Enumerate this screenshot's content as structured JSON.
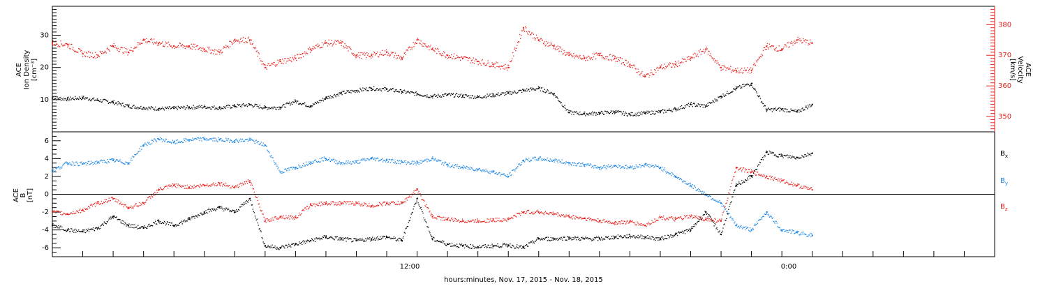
{
  "chart_data": [
    {
      "type": "scatter",
      "panel": "plasma",
      "ylabel_left": [
        "ACE",
        "Ion Density",
        "[cm⁻³]"
      ],
      "ylabel_right": [
        "ACE",
        "Velocity",
        "[km/s]"
      ],
      "ylim_left": [
        0,
        39
      ],
      "ylim_right": [
        345,
        386
      ],
      "yticks_left": [
        "10",
        "20",
        "30"
      ],
      "yticks_right": [
        "350",
        "360",
        "370",
        "380"
      ],
      "colors": {
        "density": "#000000",
        "velocity": "#e8231f"
      },
      "series": [
        {
          "key": "density",
          "axis": "left",
          "color": "#000000",
          "x": [
            0.0,
            0.5,
            1.0,
            1.5,
            2.0,
            2.5,
            3.0,
            3.5,
            4.0,
            4.5,
            5.0,
            5.5,
            6.0,
            6.5,
            7.0,
            7.5,
            8.0,
            8.5,
            9.0,
            9.5,
            10.0,
            10.5,
            11.0,
            11.5,
            12.0,
            12.5,
            13.0,
            13.5,
            14.0,
            14.5,
            15.0,
            15.5,
            16.0,
            16.5,
            17.0,
            17.5,
            18.0,
            18.5,
            19.0,
            19.5,
            20.0,
            20.5,
            21.0,
            21.5,
            22.0,
            22.5,
            23.0,
            23.5,
            24.0,
            24.5,
            25.0
          ],
          "y": [
            10.5,
            10.2,
            10.6,
            9.8,
            9.2,
            8.0,
            7.5,
            7.2,
            7.3,
            7.6,
            7.8,
            7.4,
            8.0,
            8.4,
            7.5,
            7.6,
            9.5,
            8.0,
            10.5,
            12.0,
            12.8,
            13.5,
            13.2,
            12.5,
            11.8,
            11.0,
            11.5,
            11.2,
            10.8,
            11.4,
            12.0,
            12.8,
            13.5,
            11.8,
            6.0,
            5.6,
            5.8,
            6.2,
            5.4,
            5.8,
            6.2,
            7.0,
            8.5,
            8.0,
            11.0,
            13.5,
            15.0,
            6.8,
            7.0,
            6.2,
            8.5
          ]
        },
        {
          "key": "velocity",
          "axis": "right",
          "color": "#e8231f",
          "x": [
            0.0,
            0.5,
            1.0,
            1.5,
            2.0,
            2.5,
            3.0,
            3.5,
            4.0,
            4.5,
            5.0,
            5.5,
            6.0,
            6.5,
            7.0,
            7.5,
            8.0,
            8.5,
            9.0,
            9.5,
            10.0,
            10.5,
            11.0,
            11.5,
            12.0,
            12.5,
            13.0,
            13.5,
            14.0,
            14.5,
            15.0,
            15.5,
            16.0,
            16.5,
            17.0,
            17.5,
            18.0,
            18.5,
            19.0,
            19.5,
            20.0,
            20.5,
            21.0,
            21.5,
            22.0,
            22.5,
            23.0,
            23.5,
            24.0,
            24.5,
            25.0
          ],
          "y": [
            374.0,
            373.5,
            370.5,
            370.0,
            373.0,
            371.0,
            375.0,
            374.0,
            373.0,
            373.0,
            372.0,
            371.0,
            375.0,
            375.0,
            366.0,
            368.0,
            369.0,
            372.0,
            374.0,
            374.0,
            370.0,
            370.0,
            371.0,
            369.0,
            375.0,
            372.0,
            370.0,
            369.0,
            368.0,
            367.0,
            366.0,
            379.0,
            375.0,
            373.0,
            370.0,
            369.0,
            370.0,
            369.0,
            367.0,
            363.0,
            366.0,
            367.0,
            369.0,
            372.0,
            366.0,
            365.0,
            365.0,
            373.0,
            372.0,
            375.0,
            374.0
          ]
        }
      ]
    },
    {
      "type": "scatter",
      "panel": "magnetic",
      "ylabel": [
        "ACE",
        "B",
        "[nT]"
      ],
      "ylim": [
        -7,
        7
      ],
      "yticks": [
        "-6",
        "-4",
        "-2",
        "0",
        "2",
        "4",
        "6"
      ],
      "xlabel": "hours:minutes, Nov. 17, 2015 - Nov. 18, 2015",
      "xticklabels": [
        {
          "x": 11.5,
          "label": "12:00"
        },
        {
          "x": 23.5,
          "label": "0:00"
        }
      ],
      "xlim": [
        0,
        31
      ],
      "legend": [
        "Bx",
        "By",
        "Bz"
      ],
      "colors": {
        "Bx": "#000000",
        "By": "#1e88e5",
        "Bz": "#e8231f"
      },
      "series": [
        {
          "name": "Bx",
          "color": "#000000",
          "x": [
            0.0,
            0.5,
            1.0,
            1.5,
            2.0,
            2.5,
            3.0,
            3.5,
            4.0,
            4.5,
            5.0,
            5.5,
            6.0,
            6.5,
            7.0,
            7.5,
            8.0,
            8.5,
            9.0,
            9.5,
            10.0,
            10.5,
            11.0,
            11.5,
            12.0,
            12.5,
            13.0,
            13.5,
            14.0,
            14.5,
            15.0,
            15.5,
            16.0,
            16.5,
            17.0,
            17.5,
            18.0,
            18.5,
            19.0,
            19.5,
            20.0,
            20.5,
            21.0,
            21.5,
            22.0,
            22.5,
            23.0,
            23.5,
            24.0,
            24.5,
            25.0
          ],
          "y": [
            -3.5,
            -4.0,
            -4.2,
            -3.8,
            -2.5,
            -3.5,
            -3.8,
            -3.0,
            -3.5,
            -2.8,
            -2.0,
            -1.5,
            -2.0,
            -0.5,
            -5.8,
            -6.0,
            -5.6,
            -5.2,
            -4.8,
            -5.0,
            -5.2,
            -5.0,
            -4.8,
            -5.2,
            -0.5,
            -5.0,
            -5.6,
            -5.8,
            -5.9,
            -5.8,
            -5.7,
            -6.0,
            -5.0,
            -5.0,
            -4.9,
            -5.0,
            -5.0,
            -4.8,
            -4.7,
            -4.8,
            -5.0,
            -4.5,
            -4.0,
            -2.0,
            -4.5,
            1.0,
            2.0,
            4.7,
            4.3,
            4.1,
            4.6
          ]
        },
        {
          "name": "By",
          "color": "#1e88e5",
          "x": [
            0.0,
            0.5,
            1.0,
            1.5,
            2.0,
            2.5,
            3.0,
            3.5,
            4.0,
            4.5,
            5.0,
            5.5,
            6.0,
            6.5,
            7.0,
            7.5,
            8.0,
            8.5,
            9.0,
            9.5,
            10.0,
            10.5,
            11.0,
            11.5,
            12.0,
            12.5,
            13.0,
            13.5,
            14.0,
            14.5,
            15.0,
            15.5,
            16.0,
            16.5,
            17.0,
            17.5,
            18.0,
            18.5,
            19.0,
            19.5,
            20.0,
            20.5,
            21.0,
            21.5,
            22.0,
            22.5,
            23.0,
            23.5,
            24.0,
            24.5,
            25.0
          ],
          "y": [
            2.6,
            3.5,
            3.4,
            3.6,
            3.8,
            3.5,
            5.5,
            6.2,
            5.8,
            6.1,
            6.2,
            6.1,
            6.0,
            6.1,
            5.5,
            2.5,
            3.0,
            3.6,
            4.0,
            3.5,
            3.6,
            4.0,
            3.8,
            3.6,
            3.5,
            4.0,
            3.3,
            3.0,
            2.8,
            2.5,
            2.0,
            3.8,
            4.0,
            3.8,
            3.5,
            3.3,
            3.0,
            3.2,
            3.0,
            3.3,
            3.0,
            2.0,
            1.0,
            0.0,
            -1.0,
            -3.5,
            -4.0,
            -2.0,
            -4.0,
            -4.3,
            -4.6
          ]
        },
        {
          "name": "Bz",
          "color": "#e8231f",
          "x": [
            0.0,
            0.5,
            1.0,
            1.5,
            2.0,
            2.5,
            3.0,
            3.5,
            4.0,
            4.5,
            5.0,
            5.5,
            6.0,
            6.5,
            7.0,
            7.5,
            8.0,
            8.5,
            9.0,
            9.5,
            10.0,
            10.5,
            11.0,
            11.5,
            12.0,
            12.5,
            13.0,
            13.5,
            14.0,
            14.5,
            15.0,
            15.5,
            16.0,
            16.5,
            17.0,
            17.5,
            18.0,
            18.5,
            19.0,
            19.5,
            20.0,
            20.5,
            21.0,
            21.5,
            22.0,
            22.5,
            23.0,
            23.5,
            24.0,
            24.5,
            25.0
          ],
          "y": [
            -2.0,
            -2.2,
            -1.8,
            -1.0,
            -0.5,
            -1.5,
            -1.0,
            0.5,
            1.0,
            0.8,
            1.0,
            1.2,
            0.8,
            1.5,
            -3.0,
            -2.5,
            -2.6,
            -1.2,
            -1.0,
            -1.0,
            -1.0,
            -1.3,
            -1.0,
            -1.0,
            0.5,
            -2.5,
            -2.8,
            -3.0,
            -3.0,
            -2.9,
            -2.8,
            -2.0,
            -2.0,
            -2.2,
            -2.5,
            -2.7,
            -3.0,
            -3.2,
            -3.1,
            -3.5,
            -2.6,
            -2.8,
            -2.5,
            -2.8,
            -3.0,
            3.0,
            2.5,
            2.0,
            1.5,
            1.0,
            0.5
          ]
        }
      ]
    }
  ]
}
